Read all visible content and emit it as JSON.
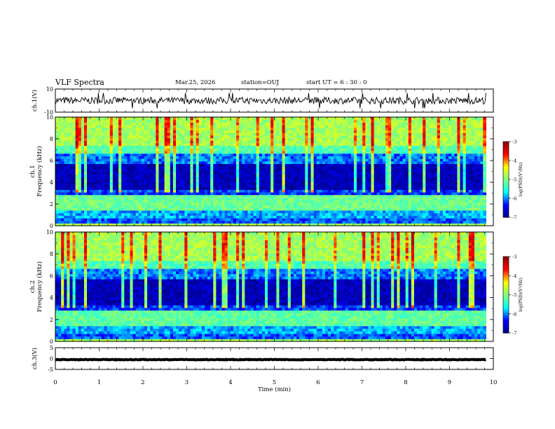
{
  "header": {
    "title": "VLF Spectra",
    "date": "Mar.25, 2026",
    "station": "station=OUJ",
    "start": "start  UT =  6 : 30 : 0"
  },
  "chart_data": [
    {
      "type": "line",
      "panel": "ch1-waveform",
      "ylabel": "ch.1(V)",
      "ylim": [
        -10,
        10
      ],
      "yticks": [
        "10",
        "-10"
      ],
      "xlim": [
        0,
        9.83
      ],
      "baseline": 0,
      "noise_amplitude": 3
    },
    {
      "type": "heatmap",
      "panel": "ch1-spectrogram",
      "ylabel": "ch.1\nFrequency  (kHz)",
      "ylim": [
        0,
        10
      ],
      "yticks": [
        "0",
        "2",
        "4",
        "6",
        "8",
        "10"
      ],
      "xlim": [
        0,
        9.83
      ],
      "colorbar": {
        "label": "log(PSD)(V²/Hz)",
        "range": [
          -7,
          -3
        ],
        "ticks": [
          "-3",
          "-4",
          "-5",
          "-6",
          "-7"
        ]
      }
    },
    {
      "type": "heatmap",
      "panel": "ch2-spectrogram",
      "ylabel": "ch.2\nFrequency  (kHz)",
      "ylim": [
        0,
        10
      ],
      "yticks": [
        "0",
        "2",
        "4",
        "6",
        "8",
        "10"
      ],
      "xlim": [
        0,
        9.83
      ],
      "colorbar": {
        "label": "log(PSD)(V²/Hz)",
        "range": [
          -7,
          -3
        ],
        "ticks": [
          "-3",
          "-4",
          "-5",
          "-6",
          "-7"
        ]
      }
    },
    {
      "type": "line",
      "panel": "ch3-waveform",
      "ylabel": "ch.3(V)",
      "ylim": [
        -5,
        5
      ],
      "yticks": [
        "5",
        "0",
        "-5"
      ],
      "xlim": [
        0,
        9.83
      ],
      "baseline": -0.5,
      "noise_amplitude": 0.15
    }
  ],
  "x_axis": {
    "label": "Time  (min)",
    "range": [
      0,
      10
    ],
    "ticks": [
      "0",
      "1",
      "2",
      "3",
      "4",
      "5",
      "6",
      "7",
      "8",
      "9",
      "10"
    ]
  },
  "colors": {
    "colormap": [
      "#00008f",
      "#0000ff",
      "#00ffff",
      "#7fff7f",
      "#ffff00",
      "#ff0000",
      "#8f0000"
    ]
  }
}
